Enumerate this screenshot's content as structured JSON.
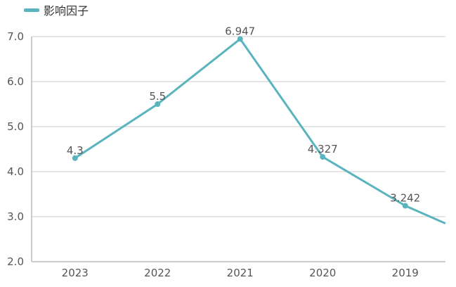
{
  "legend": {
    "label": "影响因子"
  },
  "chart_data": {
    "type": "line",
    "title": "",
    "xlabel": "",
    "ylabel": "",
    "categories": [
      "2023",
      "2022",
      "2021",
      "2020",
      "2019"
    ],
    "series": [
      {
        "name": "影响因子",
        "values": [
          4.3,
          5.5,
          6.947,
          4.327,
          3.242
        ],
        "labels": [
          "4.3",
          "5.5",
          "6.947",
          "4.327",
          "3.242"
        ],
        "trailing_value": 2.85
      }
    ],
    "ylim": [
      2.0,
      7.0
    ],
    "yticks": [
      "2.0",
      "3.0",
      "4.0",
      "5.0",
      "6.0",
      "7.0"
    ],
    "grid": true,
    "legend_position": "top-left",
    "colors": {
      "line": "#5ab4bd",
      "grid": "#cccccc",
      "axis": "#999999",
      "text": "#555555"
    }
  }
}
